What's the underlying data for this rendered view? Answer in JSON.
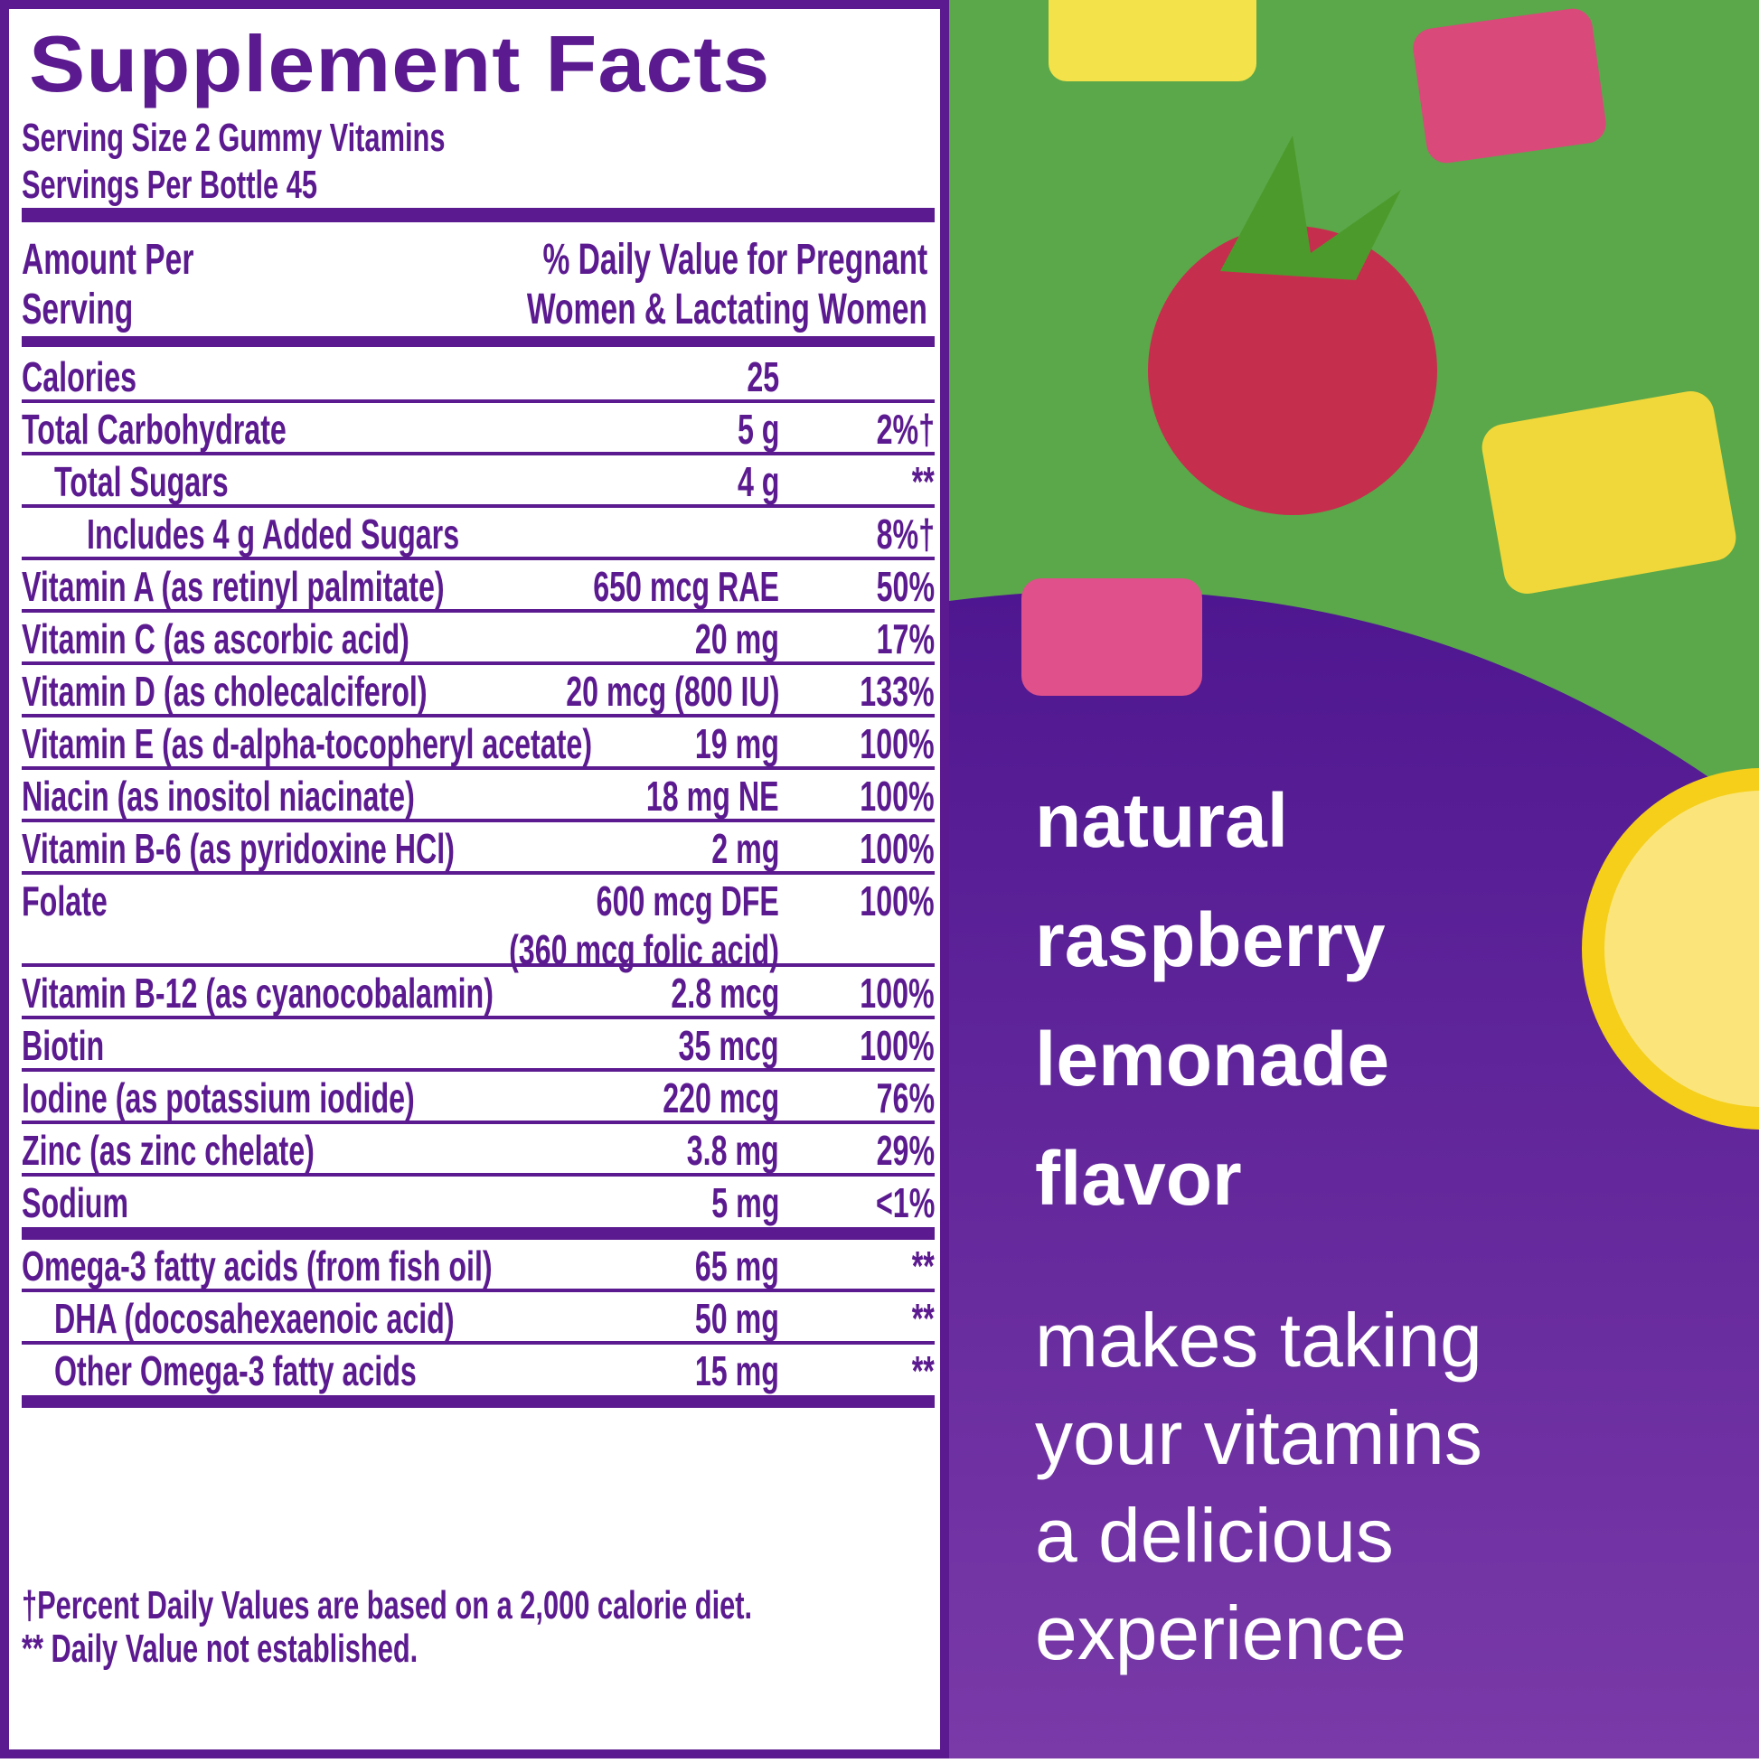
{
  "label": {
    "title": "Supplement Facts",
    "serving_size": "Serving Size 2 Gummy Vitamins",
    "servings_per": "Servings Per Bottle 45",
    "col_amount": [
      "Amount Per",
      "Serving"
    ],
    "col_dv": [
      "% Daily Value for Pregnant",
      "Women & Lactating Women"
    ],
    "rows": [
      {
        "name": "Calories",
        "amount": "25",
        "dv": ""
      },
      {
        "name": "Total Carbohydrate",
        "amount": "5 g",
        "dv": "2%†"
      },
      {
        "name": "Total Sugars",
        "amount": "4 g",
        "dv": "**",
        "indent": 1
      },
      {
        "name": "Includes 4 g Added Sugars",
        "amount": "",
        "dv": "8%†",
        "indent": 2
      },
      {
        "name": "Vitamin A (as retinyl palmitate)",
        "amount": "650 mcg RAE",
        "dv": "50%"
      },
      {
        "name": "Vitamin C (as ascorbic acid)",
        "amount": "20 mg",
        "dv": "17%"
      },
      {
        "name": "Vitamin D (as cholecalciferol)",
        "amount": "20 mcg (800 IU)",
        "dv": "133%"
      },
      {
        "name": "Vitamin E (as d-alpha-tocopheryl acetate)",
        "amount": "19 mg",
        "dv": "100%"
      },
      {
        "name": "Niacin (as inositol niacinate)",
        "amount": "18 mg NE",
        "dv": "100%"
      },
      {
        "name": "Vitamin B-6 (as pyridoxine HCl)",
        "amount": "2 mg",
        "dv": "100%"
      },
      {
        "name": "Folate",
        "amount": "600 mcg DFE",
        "amount2": "(360 mcg folic acid)",
        "dv": "100%"
      },
      {
        "name": "Vitamin B-12 (as cyanocobalamin)",
        "amount": "2.8 mcg",
        "dv": "100%"
      },
      {
        "name": "Biotin",
        "amount": "35 mcg",
        "dv": "100%"
      },
      {
        "name": "Iodine (as potassium iodide)",
        "amount": "220 mcg",
        "dv": "76%"
      },
      {
        "name": "Zinc (as zinc chelate)",
        "amount": "3.8 mg",
        "dv": "29%"
      },
      {
        "name": "Sodium",
        "amount": "5 mg",
        "dv": "<1%"
      },
      {
        "name": "Omega-3 fatty acids (from fish oil)",
        "amount": "65 mg",
        "dv": "**"
      },
      {
        "name": "DHA (docosahexaenoic acid)",
        "amount": "50 mg",
        "dv": "**",
        "indent": 1
      },
      {
        "name": "Other Omega-3 fatty acids",
        "amount": "15 mg",
        "dv": "**",
        "indent": 1
      }
    ],
    "footnotes": [
      "†Percent Daily Values are based on a 2,000 calorie diet.",
      "** Daily Value not established."
    ]
  },
  "promo": {
    "flavor_lines": [
      "natural",
      "raspberry",
      "lemonade",
      "flavor"
    ],
    "tagline_lines": [
      "makes taking",
      "your vitamins",
      "a delicious",
      "experience"
    ]
  },
  "colors": {
    "purple": "#5b1a8f",
    "green": "#5aa84a",
    "white": "#ffffff"
  }
}
